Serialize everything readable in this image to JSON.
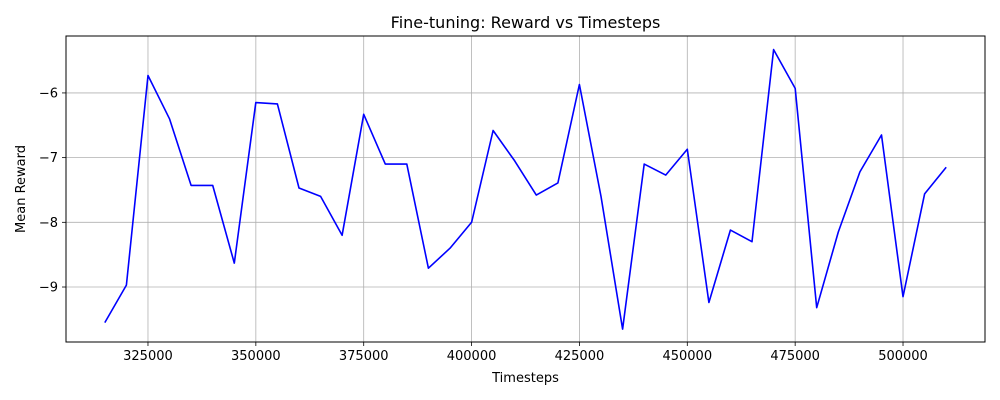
{
  "chart_data": {
    "type": "line",
    "title": "Fine-tuning: Reward vs Timesteps",
    "xlabel": "Timesteps",
    "ylabel": "Mean Reward",
    "xlim": [
      306000,
      519000
    ],
    "ylim": [
      -9.85,
      -5.12
    ],
    "xticks": [
      325000,
      350000,
      375000,
      400000,
      425000,
      450000,
      475000,
      500000
    ],
    "xtick_labels": [
      "325000",
      "350000",
      "375000",
      "400000",
      "425000",
      "450000",
      "475000",
      "500000"
    ],
    "yticks": [
      -9,
      -8,
      -7,
      -6
    ],
    "ytick_labels": [
      "−9",
      "−8",
      "−7",
      "−6"
    ],
    "grid": true,
    "series": [
      {
        "color": "#0000ff",
        "x": [
          315000,
          320000,
          325000,
          330000,
          335000,
          340000,
          345000,
          350000,
          355000,
          360000,
          365000,
          370000,
          375000,
          380000,
          385000,
          390000,
          395000,
          400000,
          405000,
          410000,
          415000,
          420000,
          425000,
          430000,
          435000,
          440000,
          445000,
          450000,
          455000,
          460000,
          465000,
          470000,
          475000,
          480000,
          485000,
          490000,
          495000,
          500000,
          505000,
          510000
        ],
        "y": [
          -9.55,
          -8.97,
          -5.73,
          -6.4,
          -7.43,
          -7.43,
          -8.63,
          -6.15,
          -6.17,
          -7.47,
          -7.6,
          -8.2,
          -6.33,
          -7.1,
          -7.1,
          -8.71,
          -8.4,
          -8.0,
          -6.58,
          -7.05,
          -7.58,
          -7.39,
          -5.87,
          -7.6,
          -9.65,
          -7.1,
          -7.27,
          -6.87,
          -9.24,
          -8.12,
          -8.3,
          -5.33,
          -5.93,
          -9.32,
          -8.15,
          -7.22,
          -6.65,
          -9.15,
          -7.56,
          -7.15
        ]
      }
    ]
  }
}
